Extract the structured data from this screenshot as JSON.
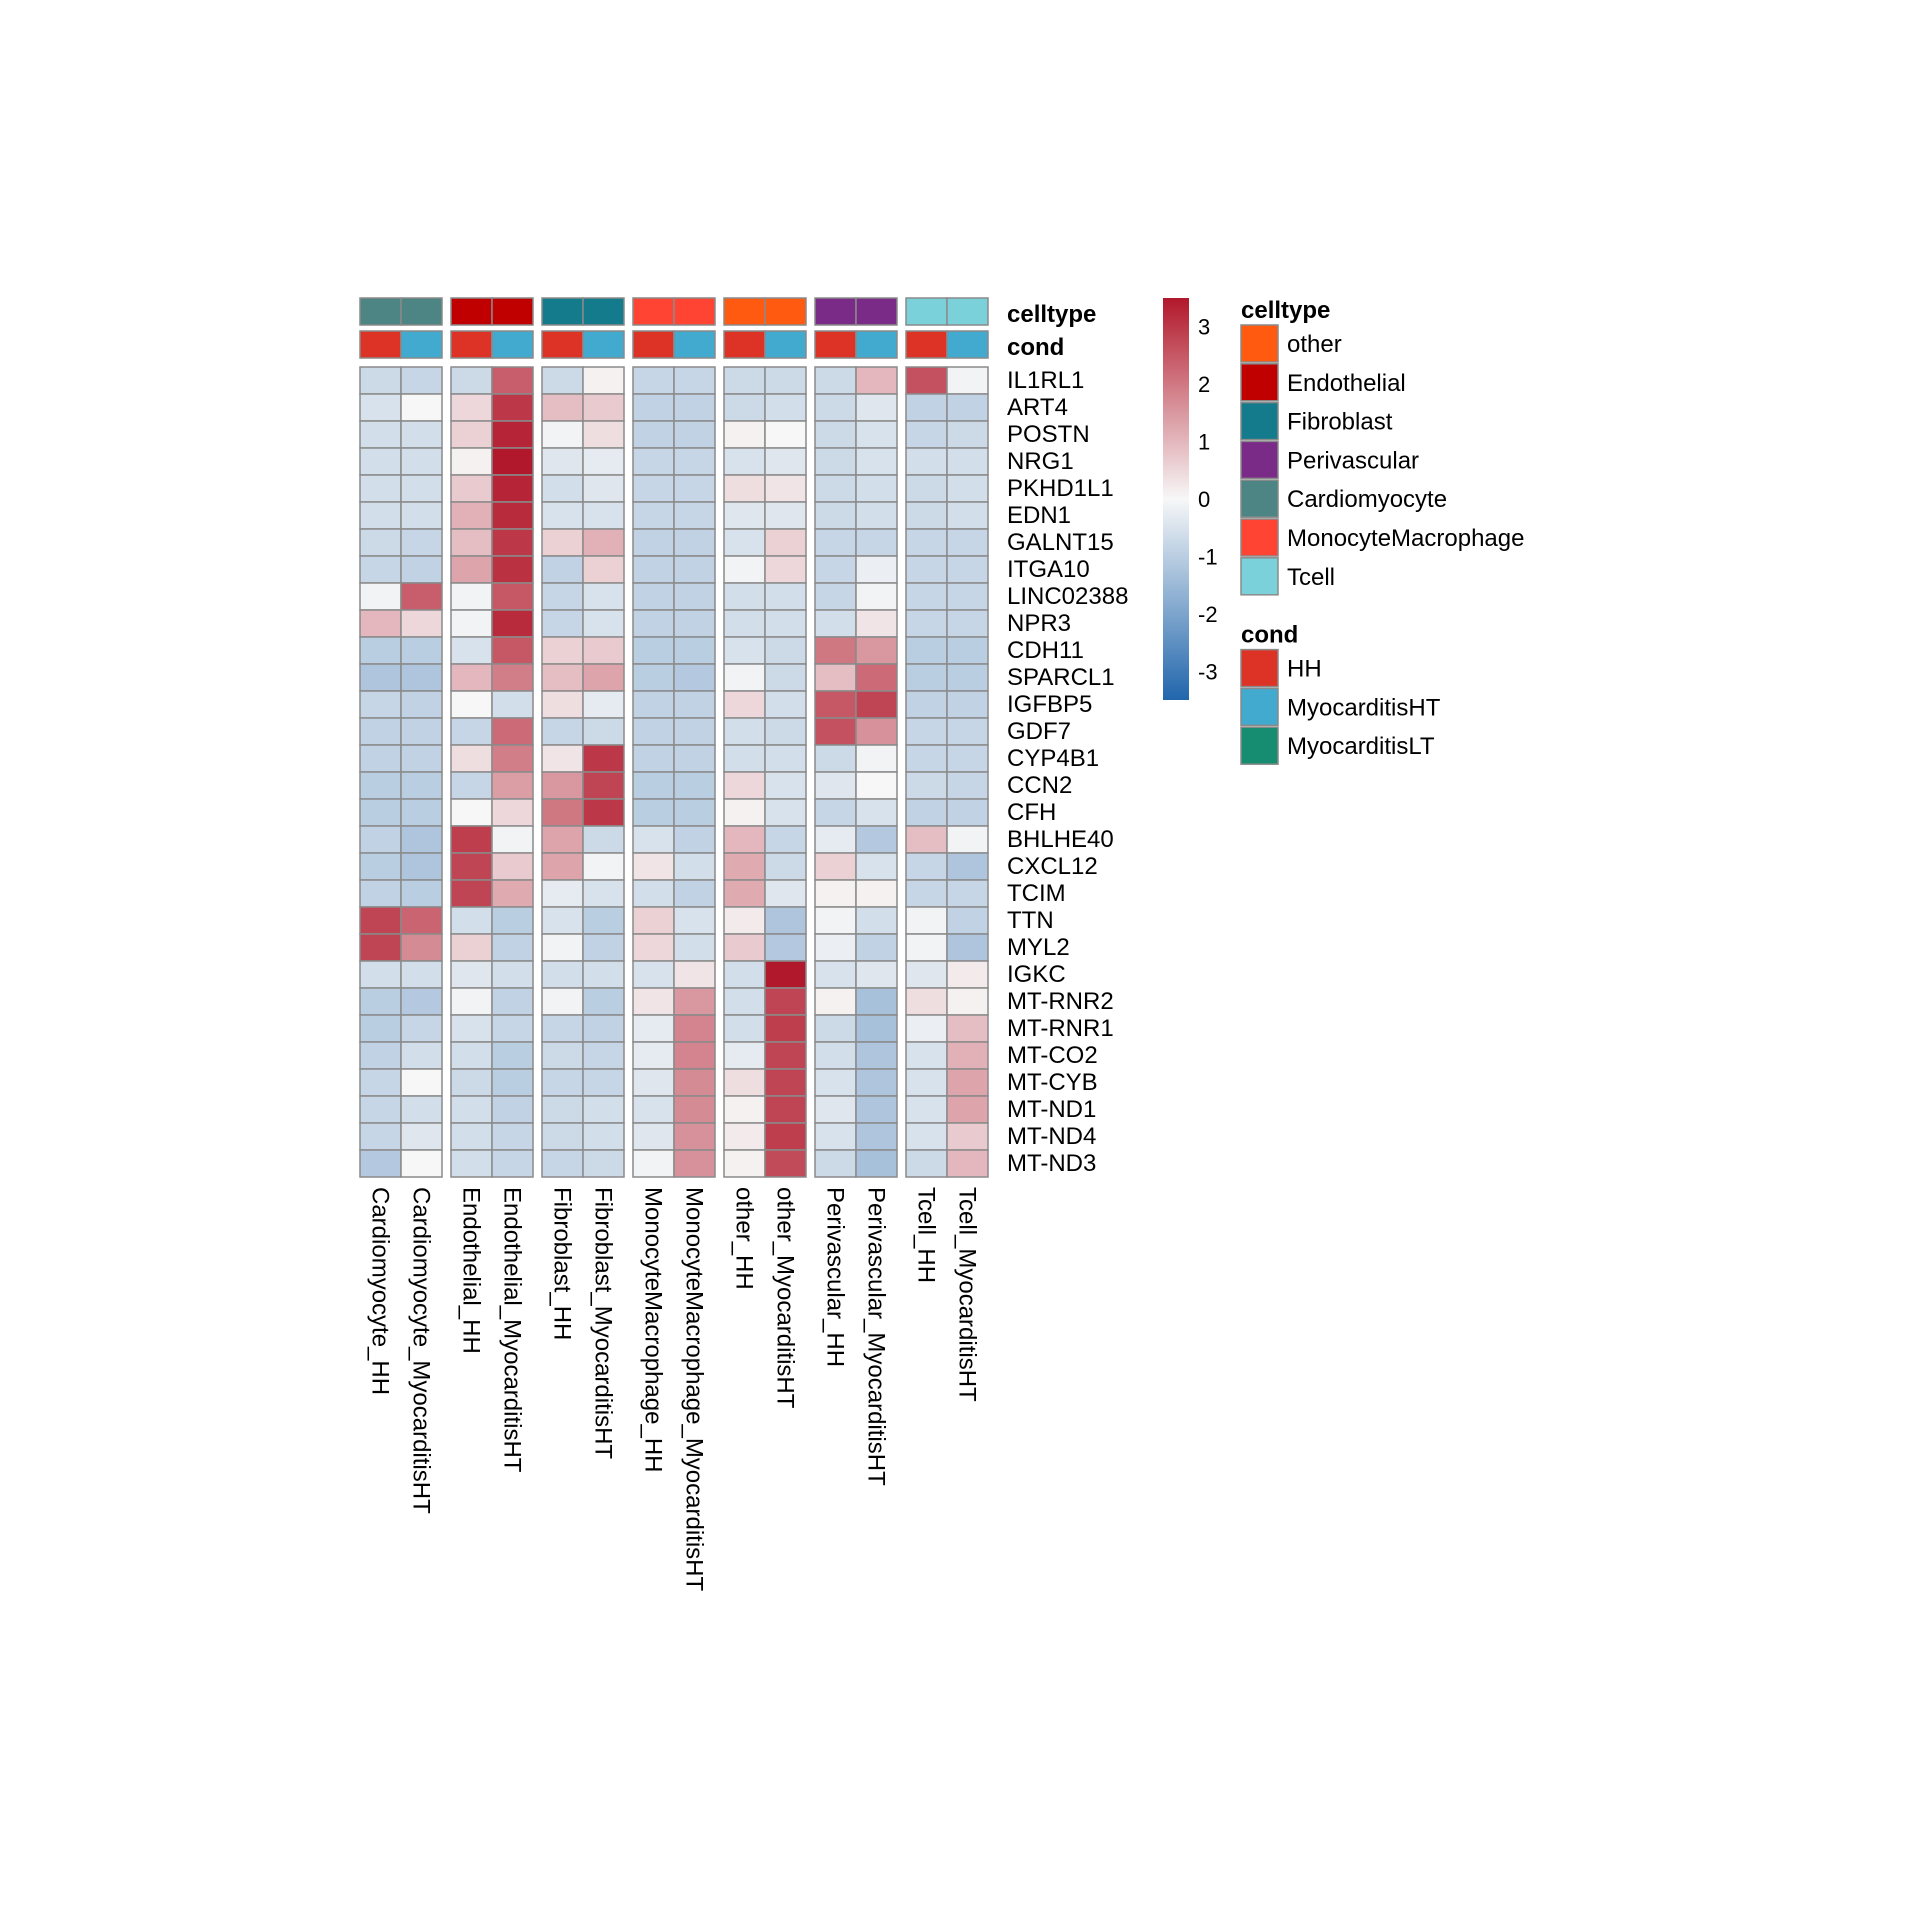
{
  "chart_data": {
    "type": "heatmap",
    "title": "",
    "color_scale": {
      "min": -3.5,
      "max": 3.5,
      "ticks": [
        3,
        2,
        1,
        0,
        -1,
        -2,
        -3
      ],
      "low_color": "#2166ac",
      "mid_color": "#f7f7f7",
      "high_color": "#b2182b"
    },
    "columns": [
      "Cardiomyocyte_HH",
      "Cardiomyocyte_MyocarditisHT",
      "Endothelial_HH",
      "Endothelial_MyocarditisHT",
      "Fibroblast_HH",
      "Fibroblast_MyocarditisHT",
      "MonocyteMacrophage_HH",
      "MonocyteMacrophage_MyocarditisHT",
      "other_HH",
      "other_MyocarditisHT",
      "Perivascular_HH",
      "Perivascular_MyocarditisHT",
      "Tcell_HH",
      "Tcell_MyocarditisHT"
    ],
    "column_celltype": [
      "Cardiomyocyte",
      "Cardiomyocyte",
      "Endothelial",
      "Endothelial",
      "Fibroblast",
      "Fibroblast",
      "MonocyteMacrophage",
      "MonocyteMacrophage",
      "other",
      "other",
      "Perivascular",
      "Perivascular",
      "Tcell",
      "Tcell"
    ],
    "column_cond": [
      "HH",
      "MyocarditisHT",
      "HH",
      "MyocarditisHT",
      "HH",
      "MyocarditisHT",
      "HH",
      "MyocarditisHT",
      "HH",
      "MyocarditisHT",
      "HH",
      "MyocarditisHT",
      "HH",
      "MyocarditisHT"
    ],
    "annotation_rows": [
      "celltype",
      "cond"
    ],
    "rows": [
      "IL1RL1",
      "ART4",
      "POSTN",
      "NRG1",
      "PKHD1L1",
      "EDN1",
      "GALNT15",
      "ITGA10",
      "LINC02388",
      "NPR3",
      "CDH11",
      "SPARCL1",
      "IGFBP5",
      "GDF7",
      "CYP4B1",
      "CCN2",
      "CFH",
      "BHLHE40",
      "CXCL12",
      "TCIM",
      "TTN",
      "MYL2",
      "IGKC",
      "MT-RNR2",
      "MT-RNR1",
      "MT-CO2",
      "MT-CYB",
      "MT-ND1",
      "MT-ND4",
      "MT-ND3"
    ],
    "values": [
      [
        -0.7,
        -0.8,
        -0.7,
        2.4,
        -0.7,
        0.1,
        -0.8,
        -0.8,
        -0.7,
        -0.7,
        -0.7,
        1.0,
        2.6,
        -0.1
      ],
      [
        -0.5,
        0.0,
        0.5,
        3.0,
        0.9,
        0.7,
        -0.9,
        -0.9,
        -0.7,
        -0.6,
        -0.7,
        -0.4,
        -0.9,
        -0.9
      ],
      [
        -0.6,
        -0.6,
        0.6,
        3.3,
        -0.1,
        0.4,
        -0.9,
        -0.9,
        0.1,
        0.0,
        -0.7,
        -0.5,
        -0.8,
        -0.7
      ],
      [
        -0.6,
        -0.6,
        0.1,
        3.5,
        -0.4,
        -0.3,
        -0.8,
        -0.8,
        -0.5,
        -0.4,
        -0.7,
        -0.5,
        -0.6,
        -0.6
      ],
      [
        -0.6,
        -0.6,
        0.7,
        3.3,
        -0.6,
        -0.4,
        -0.8,
        -0.8,
        0.4,
        0.3,
        -0.7,
        -0.6,
        -0.7,
        -0.6
      ],
      [
        -0.6,
        -0.6,
        1.1,
        3.2,
        -0.5,
        -0.5,
        -0.8,
        -0.8,
        -0.4,
        -0.4,
        -0.7,
        -0.6,
        -0.7,
        -0.6
      ],
      [
        -0.7,
        -0.8,
        0.9,
        3.0,
        0.6,
        1.1,
        -0.9,
        -0.9,
        -0.5,
        0.6,
        -0.8,
        -0.8,
        -0.8,
        -0.8
      ],
      [
        -0.8,
        -0.9,
        1.3,
        3.1,
        -0.9,
        0.6,
        -0.9,
        -0.9,
        -0.1,
        0.5,
        -0.8,
        -0.2,
        -0.8,
        -0.8
      ],
      [
        -0.1,
        2.4,
        -0.1,
        2.5,
        -0.8,
        -0.5,
        -0.9,
        -0.9,
        -0.6,
        -0.6,
        -0.8,
        -0.1,
        -0.8,
        -0.8
      ],
      [
        1.0,
        0.5,
        -0.1,
        3.2,
        -0.8,
        -0.5,
        -0.9,
        -0.9,
        -0.6,
        -0.6,
        -0.6,
        0.3,
        -0.8,
        -0.8
      ],
      [
        -1.0,
        -1.0,
        -0.5,
        2.5,
        0.6,
        0.7,
        -1.0,
        -1.0,
        -0.5,
        -0.7,
        2.0,
        1.5,
        -1.0,
        -1.0
      ],
      [
        -1.2,
        -1.2,
        1.0,
        1.9,
        0.9,
        1.3,
        -1.0,
        -1.1,
        -0.1,
        -0.7,
        0.9,
        2.2,
        -1.0,
        -1.0
      ],
      [
        -0.8,
        -0.9,
        0.0,
        -0.6,
        0.4,
        -0.3,
        -0.9,
        -0.9,
        0.5,
        -0.6,
        2.5,
        2.8,
        -0.9,
        -0.9
      ],
      [
        -0.9,
        -0.9,
        -0.8,
        2.2,
        -0.8,
        -0.7,
        -0.9,
        -0.9,
        -0.6,
        -0.7,
        2.6,
        1.6,
        -0.8,
        -0.8
      ],
      [
        -0.9,
        -0.9,
        0.4,
        1.9,
        0.3,
        3.0,
        -0.9,
        -0.9,
        -0.6,
        -0.6,
        -0.7,
        -0.1,
        -0.8,
        -0.8
      ],
      [
        -1.0,
        -1.0,
        -0.8,
        1.4,
        1.5,
        2.8,
        -1.0,
        -1.0,
        0.5,
        -0.5,
        -0.4,
        0.0,
        -0.7,
        -0.8
      ],
      [
        -1.0,
        -1.0,
        0.0,
        0.5,
        2.0,
        3.0,
        -1.0,
        -1.0,
        0.1,
        -0.5,
        -0.8,
        -0.5,
        -0.9,
        -0.9
      ],
      [
        -0.9,
        -1.2,
        2.9,
        -0.1,
        1.3,
        -0.7,
        -0.5,
        -0.9,
        1.0,
        -0.8,
        -0.3,
        -1.1,
        0.9,
        -0.1
      ],
      [
        -1.0,
        -1.2,
        2.8,
        0.7,
        1.3,
        -0.1,
        0.3,
        -0.6,
        1.2,
        -0.7,
        0.6,
        -0.5,
        -0.8,
        -1.2
      ],
      [
        -0.9,
        -1.0,
        2.8,
        1.2,
        -0.3,
        -0.5,
        -0.6,
        -0.9,
        1.2,
        -0.4,
        0.1,
        0.1,
        -0.8,
        -0.8
      ],
      [
        2.8,
        2.3,
        -0.6,
        -1.0,
        -0.5,
        -1.0,
        0.6,
        -0.5,
        0.2,
        -1.2,
        -0.1,
        -0.6,
        -0.1,
        -0.9
      ],
      [
        2.8,
        1.7,
        0.6,
        -0.9,
        -0.1,
        -0.9,
        0.5,
        -0.6,
        0.7,
        -1.1,
        -0.2,
        -0.9,
        -0.1,
        -1.2
      ],
      [
        -0.6,
        -0.6,
        -0.4,
        -0.6,
        -0.6,
        -0.6,
        -0.5,
        0.3,
        -0.6,
        3.5,
        -0.5,
        -0.4,
        -0.4,
        0.2
      ],
      [
        -1.0,
        -1.1,
        -0.1,
        -0.9,
        -0.1,
        -1.0,
        0.3,
        1.5,
        -0.6,
        2.8,
        0.1,
        -1.3,
        0.4,
        0.1
      ],
      [
        -1.0,
        -0.8,
        -0.5,
        -0.8,
        -0.8,
        -0.9,
        -0.3,
        1.8,
        -0.6,
        2.9,
        -0.7,
        -1.3,
        -0.2,
        0.9
      ],
      [
        -0.9,
        -0.6,
        -0.6,
        -1.0,
        -0.7,
        -0.8,
        -0.3,
        1.8,
        -0.3,
        2.8,
        -0.6,
        -1.2,
        -0.5,
        1.1
      ],
      [
        -0.8,
        0.0,
        -0.7,
        -1.0,
        -0.8,
        -0.8,
        -0.4,
        1.7,
        0.4,
        2.8,
        -0.5,
        -1.2,
        -0.5,
        1.3
      ],
      [
        -0.8,
        -0.6,
        -0.6,
        -0.9,
        -0.7,
        -0.6,
        -0.5,
        1.7,
        0.1,
        2.8,
        -0.4,
        -1.2,
        -0.5,
        1.3
      ],
      [
        -0.8,
        -0.4,
        -0.6,
        -0.8,
        -0.7,
        -0.6,
        -0.4,
        1.6,
        0.2,
        2.9,
        -0.5,
        -1.2,
        -0.5,
        0.7
      ],
      [
        -1.1,
        0.0,
        -0.6,
        -0.8,
        -0.8,
        -0.7,
        -0.1,
        1.6,
        0.1,
        2.7,
        -0.7,
        -1.3,
        -0.7,
        1.0
      ]
    ]
  },
  "legend": {
    "celltype": {
      "title": "celltype",
      "items": [
        {
          "label": "other",
          "color": "#ff5a0f"
        },
        {
          "label": "Endothelial",
          "color": "#c00000"
        },
        {
          "label": "Fibroblast",
          "color": "#137b8b"
        },
        {
          "label": "Perivascular",
          "color": "#7a2a87"
        },
        {
          "label": "Cardiomyocyte",
          "color": "#4d8484"
        },
        {
          "label": "MonocyteMacrophage",
          "color": "#ff4433"
        },
        {
          "label": "Tcell",
          "color": "#7ad1da"
        }
      ]
    },
    "cond": {
      "title": "cond",
      "items": [
        {
          "label": "HH",
          "color": "#dd3327"
        },
        {
          "label": "MyocarditisHT",
          "color": "#42aacf"
        },
        {
          "label": "MyocarditisLT",
          "color": "#168d70"
        }
      ]
    }
  }
}
